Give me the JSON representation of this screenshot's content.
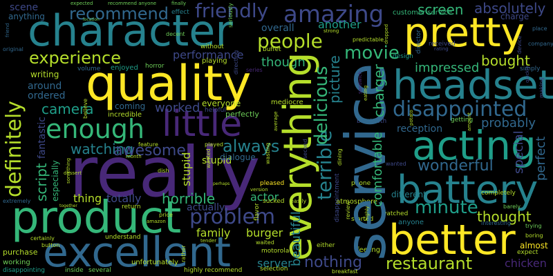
{
  "palette": {
    "background": "#000000",
    "yellow": "#fde725",
    "yellowgreen": "#b5de2b",
    "green": "#35b779",
    "lightgreen": "#6ece58",
    "teal": "#1f9e89",
    "cyan": "#26828e",
    "blue": "#31688e",
    "indigo": "#3e4989",
    "purple": "#482878",
    "darkpurple": "#440154"
  },
  "words": {
    "character": "character",
    "quality": "quality",
    "really": "really",
    "service": "service",
    "pretty": "pretty",
    "product": "product",
    "excellent": "excellent",
    "headset": "headset",
    "battery": "battery",
    "better": "better",
    "acting": "acting",
    "everything": "everything",
    "little": "little",
    "enough": "enough",
    "disappointed": "disappointed",
    "amazing": "amazing",
    "friendly": "friendly",
    "recommend": "recommend",
    "experience": "experience",
    "people": "people",
    "movie": "movie",
    "screen": "screen",
    "absolutely": "absolutely",
    "definitely": "definitely",
    "terrible": "terrible",
    "delicious": "delicious",
    "wonderful": "wonderful",
    "restaurant": "restaurant",
    "minute": "minute",
    "problem": "problem",
    "horrible": "horrible",
    "nothing": "nothing",
    "camera": "camera",
    "watching": "watching",
    "awesome": "awesome",
    "always": "always",
    "thought": "thought",
    "bought": "bought",
    "impressed": "impressed",
    "comfortable": "comfortable",
    "charger": "charger",
    "picture": "picture",
    "beautiful": "beautiful",
    "thing": "thing",
    "totally": "totally",
    "script": "script",
    "fantastic": "fantastic",
    "performance": "performance",
    "though": "though",
    "worked": "worked",
    "probably": "probably",
    "special": "special",
    "perfect": "perfect",
    "family": "family",
    "burger": "burger",
    "server": "server",
    "actor": "actor",
    "chicken": "chicken",
    "almost": "almost",
    "reception": "reception",
    "another": "another",
    "overall": "overall",
    "around": "around",
    "ordered": "ordered",
    "stupid": "stupid",
    "actually": "actually",
    "scene": "scene",
    "anything": "anything",
    "especially": "especially",
    "dialogue": "dialogue",
    "everyone": "everyone",
    "coming": "coming",
    "incredible": "incredible",
    "writing": "writing",
    "enjoyed": "enjoyed",
    "volume": "volume",
    "horror": "horror",
    "perfectly": "perfectly",
    "playing": "playing",
    "directing": "directing",
    "series": "series",
    "mediocre": "mediocre",
    "helpful": "helpful",
    "second": "second",
    "bluetooth": "bluetooth",
    "getting": "getting",
    "design": "design",
    "customer_service": "customer service",
    "charge": "charge",
    "director": "director",
    "place": "place",
    "company": "company",
    "rating": "rating",
    "received": "received",
    "simply": "simply",
    "effect": "effect",
    "finally": "finally",
    "expected": "expected",
    "recommend_anyone": "recommend anyone",
    "seriously": "seriously",
    "without": "without",
    "strong": "strong",
    "predictable": "predictable",
    "location": "location",
    "decent": "decent",
    "buffet": "buffet",
    "original": "original",
    "friend": "friend",
    "feature": "feature",
    "played": "played",
    "month": "month",
    "dish": "dish",
    "price": "price",
    "wasted": "wasted",
    "perhaps": "perhaps",
    "pleased": "pleased",
    "version": "version",
    "sucked": "sucked",
    "easily": "easily",
    "either": "either",
    "review": "review",
    "started": "started",
    "watched": "watched",
    "anyone": "anyone",
    "phone": "phone",
    "wanted": "wanted",
    "different": "different",
    "atmosphere": "atmosphere",
    "completely": "completely",
    "interesting": "interesting",
    "trying": "trying",
    "barely": "barely",
    "boring": "boring",
    "expect": "expect",
    "extremely": "extremely",
    "together": "together",
    "return": "return",
    "amazon": "amazon",
    "certainly": "certainly",
    "understand": "understand",
    "purchase": "purchase",
    "button": "button",
    "working": "working",
    "disappointing": "disappointing",
    "inside": "inside",
    "several": "several",
    "unfortunately": "unfortunately",
    "highly_recommend": "highly recommend",
    "selection": "selection",
    "breakfast": "breakfast",
    "motorola": "motorola",
    "waited": "waited",
    "feeling": "feeling",
    "tender": "tender",
    "something": "something",
    "dessert": "dessert",
    "disappointment": "disappointment",
    "dining": "dining",
    "flavor": "flavor",
    "believe": "believe",
    "highly": "highly",
    "amount": "amount",
    "potato": "potato",
    "eating": "eating",
    "sandwich": "sandwich",
    "dropped": "dropped",
    "making": "making",
    "device": "device",
    "average": "average",
    "wasting": "wasting",
    "rather": "rather",
    "quickly": "quickly"
  }
}
